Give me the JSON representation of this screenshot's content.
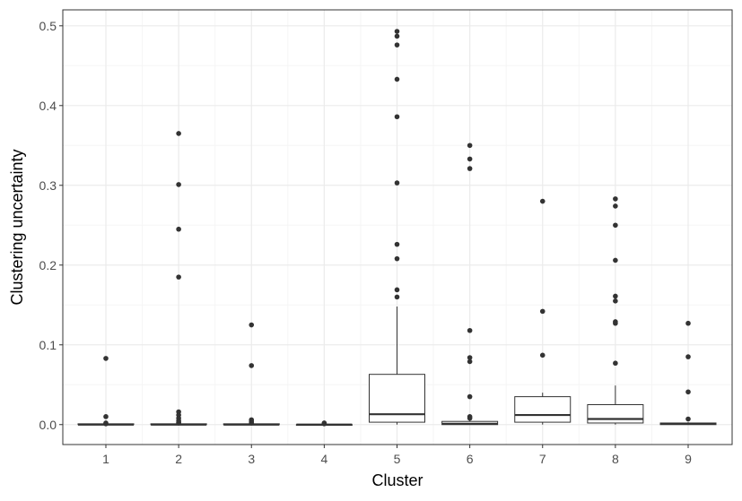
{
  "chart_data": {
    "type": "boxplot",
    "title": "",
    "xlabel": "Cluster",
    "ylabel": "Clustering uncertainty",
    "ylim": [
      -0.025,
      0.52
    ],
    "yticks": [
      0.0,
      0.1,
      0.2,
      0.3,
      0.4,
      0.5
    ],
    "ytick_labels": [
      "0.0",
      "0.1",
      "0.2",
      "0.3",
      "0.4",
      "0.5"
    ],
    "grid": true,
    "theme": "bw",
    "categories": [
      "1",
      "2",
      "3",
      "4",
      "5",
      "6",
      "7",
      "8",
      "9"
    ],
    "boxes": [
      {
        "category": "1",
        "lower_whisker": 0.0,
        "q1": 0.0,
        "median": 0.0,
        "q3": 0.001,
        "upper_whisker": 0.001,
        "outliers": [
          0.083,
          0.01,
          0.002,
          0.001
        ]
      },
      {
        "category": "2",
        "lower_whisker": 0.0,
        "q1": 0.0,
        "median": 0.0,
        "q3": 0.001,
        "upper_whisker": 0.001,
        "outliers": [
          0.365,
          0.301,
          0.245,
          0.185,
          0.016,
          0.012,
          0.008,
          0.005,
          0.003,
          0.002
        ]
      },
      {
        "category": "3",
        "lower_whisker": 0.0,
        "q1": 0.0,
        "median": 0.0,
        "q3": 0.001,
        "upper_whisker": 0.001,
        "outliers": [
          0.125,
          0.074,
          0.006,
          0.004,
          0.002
        ]
      },
      {
        "category": "4",
        "lower_whisker": 0.0,
        "q1": 0.0,
        "median": 0.0,
        "q3": 0.0,
        "upper_whisker": 0.0,
        "outliers": [
          0.002,
          0.001
        ]
      },
      {
        "category": "5",
        "lower_whisker": 0.0,
        "q1": 0.003,
        "median": 0.013,
        "q3": 0.063,
        "upper_whisker": 0.148,
        "outliers": [
          0.493,
          0.487,
          0.476,
          0.433,
          0.386,
          0.303,
          0.226,
          0.208,
          0.169,
          0.16
        ]
      },
      {
        "category": "6",
        "lower_whisker": 0.0,
        "q1": 0.0,
        "median": 0.001,
        "q3": 0.004,
        "upper_whisker": 0.006,
        "outliers": [
          0.35,
          0.333,
          0.321,
          0.118,
          0.084,
          0.079,
          0.035,
          0.01,
          0.008
        ]
      },
      {
        "category": "7",
        "lower_whisker": 0.0,
        "q1": 0.003,
        "median": 0.012,
        "q3": 0.035,
        "upper_whisker": 0.04,
        "outliers": [
          0.28,
          0.142,
          0.087
        ]
      },
      {
        "category": "8",
        "lower_whisker": 0.0,
        "q1": 0.002,
        "median": 0.007,
        "q3": 0.025,
        "upper_whisker": 0.049,
        "outliers": [
          0.283,
          0.274,
          0.25,
          0.206,
          0.161,
          0.155,
          0.129,
          0.127,
          0.077
        ]
      },
      {
        "category": "9",
        "lower_whisker": 0.0,
        "q1": 0.0,
        "median": 0.001,
        "q3": 0.002,
        "upper_whisker": 0.003,
        "outliers": [
          0.127,
          0.085,
          0.041,
          0.007
        ]
      }
    ],
    "colors": {
      "background": "#ffffff",
      "panel_border": "#333333",
      "grid_major": "#ebebeb",
      "grid_minor": "#f5f5f5",
      "box_stroke": "#333333",
      "outlier_fill": "#333333",
      "tick_label": "#4d4d4d",
      "axis_title": "#000000"
    }
  }
}
